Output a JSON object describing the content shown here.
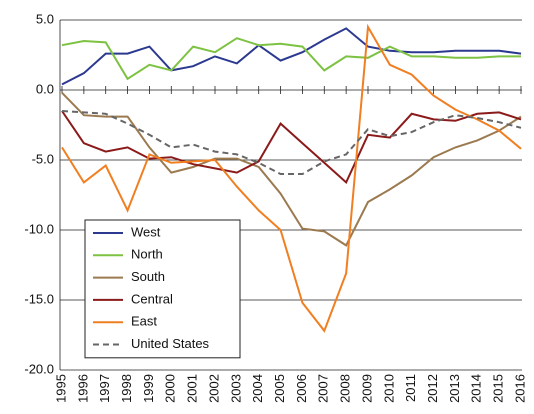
{
  "chart_data": {
    "type": "line",
    "categories": [
      "1995",
      "1996",
      "1997",
      "1998",
      "1999",
      "2000",
      "2001",
      "2002",
      "2003",
      "2004",
      "2005",
      "2006",
      "2007",
      "2008",
      "2009",
      "2010",
      "2011",
      "2012",
      "2013",
      "2014",
      "2015",
      "2016"
    ],
    "ylim": [
      -20,
      5
    ],
    "yticks": [
      {
        "value": -20,
        "label": "-20.0"
      },
      {
        "value": -15,
        "label": "-15.0"
      },
      {
        "value": -10,
        "label": "-10.0"
      },
      {
        "value": -5,
        "label": "-5.0"
      },
      {
        "value": 0,
        "label": "0.0"
      },
      {
        "value": 5,
        "label": "5.0"
      }
    ],
    "grid": true,
    "legend": "lower left",
    "series": [
      {
        "name": "West",
        "color": "#2b3990",
        "values": [
          0.4,
          1.2,
          2.6,
          2.6,
          3.1,
          1.4,
          1.7,
          2.4,
          1.9,
          3.2,
          2.1,
          2.7,
          3.6,
          4.4,
          3.1,
          2.8,
          2.7,
          2.7,
          2.8,
          2.8,
          2.8,
          2.6
        ]
      },
      {
        "name": "North",
        "color": "#7dc242",
        "values": [
          3.2,
          3.5,
          3.4,
          0.8,
          1.8,
          1.4,
          3.1,
          2.7,
          3.7,
          3.2,
          3.3,
          3.1,
          1.4,
          2.4,
          2.3,
          3.1,
          2.4,
          2.4,
          2.3,
          2.3,
          2.4,
          2.4
        ]
      },
      {
        "name": "South",
        "color": "#9b7a50",
        "values": [
          -0.2,
          -1.8,
          -1.9,
          -1.9,
          -4.1,
          -5.9,
          -5.5,
          -4.9,
          -4.9,
          -5.5,
          -7.4,
          -9.9,
          -10.1,
          -11.1,
          -8.0,
          -7.1,
          -6.1,
          -4.8,
          -4.1,
          -3.6,
          -2.9,
          -1.9
        ]
      },
      {
        "name": "Central",
        "color": "#8b1a1a",
        "values": [
          -1.5,
          -3.8,
          -4.4,
          -4.1,
          -4.9,
          -4.8,
          -5.3,
          -5.6,
          -5.9,
          -5.1,
          -2.4,
          -3.8,
          -5.2,
          -6.6,
          -3.2,
          -3.4,
          -1.7,
          -2.1,
          -2.2,
          -1.7,
          -1.6,
          -2.1
        ]
      },
      {
        "name": "East",
        "color": "#f07f22",
        "values": [
          -4.1,
          -6.6,
          -5.4,
          -8.6,
          -4.6,
          -5.2,
          -5.1,
          -5.0,
          -6.9,
          -8.6,
          -10.0,
          -15.2,
          -17.2,
          -13.1,
          4.5,
          1.8,
          1.1,
          -0.4,
          -1.4,
          -2.1,
          -2.9,
          -4.2
        ]
      },
      {
        "name": "United States",
        "color": "#666666",
        "dash": true,
        "values": [
          -1.5,
          -1.6,
          -1.7,
          -2.4,
          -3.2,
          -4.1,
          -3.9,
          -4.4,
          -4.6,
          -5.2,
          -6.0,
          -6.0,
          -5.1,
          -4.6,
          -2.8,
          -3.3,
          -3.0,
          -2.3,
          -1.8,
          -2.0,
          -2.3,
          -2.7
        ]
      }
    ]
  }
}
